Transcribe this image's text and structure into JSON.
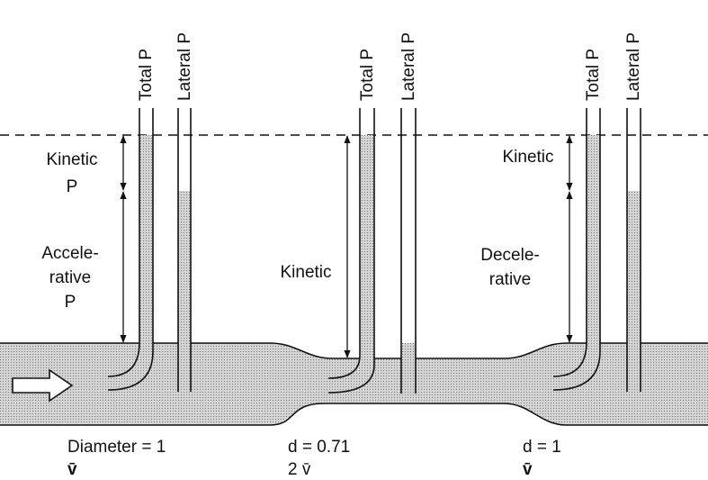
{
  "stations": [
    {
      "total_label": "Total P",
      "lateral_label": "Lateral P",
      "caption": [
        "Diameter = 1",
        "v̄"
      ]
    },
    {
      "total_label": "Total P",
      "lateral_label": "Lateral P",
      "caption": [
        "d = 0.71",
        "2 v̄"
      ]
    },
    {
      "total_label": "Total P",
      "lateral_label": "Lateral P",
      "caption": [
        "d = 1",
        "v̄"
      ]
    }
  ],
  "annotations": [
    {
      "lines": [
        "Kinetic",
        "P"
      ]
    },
    {
      "lines": [
        "Accele-",
        "rative",
        "P"
      ]
    },
    {
      "lines": [
        "Kinetic"
      ]
    },
    {
      "lines": [
        "Kinetic"
      ]
    },
    {
      "lines": [
        "Decele-",
        "rative"
      ]
    }
  ]
}
